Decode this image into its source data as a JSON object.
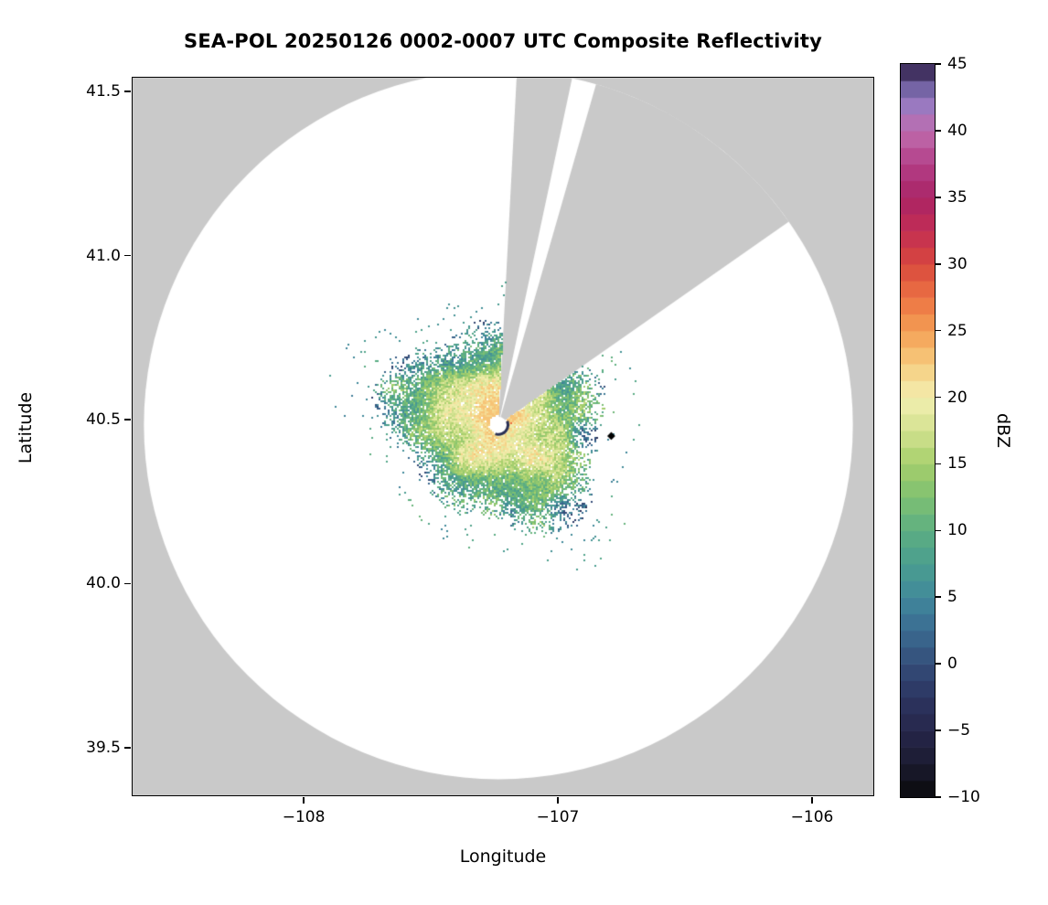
{
  "chart_data": {
    "type": "heatmap",
    "title": "SEA-POL 20250126 0002-0007 UTC Composite Reflectivity",
    "xlabel": "Longitude",
    "ylabel": "Latitude",
    "units": "dBZ",
    "grid": false,
    "xlim": [
      -108.673,
      -105.759
    ],
    "ylim": [
      39.355,
      41.542
    ],
    "x_ticks": [
      {
        "value": -108,
        "label": "−108"
      },
      {
        "value": -107,
        "label": "−107"
      },
      {
        "value": -106,
        "label": "−106"
      }
    ],
    "y_ticks": [
      {
        "value": 39.5,
        "label": "39.5"
      },
      {
        "value": 40.0,
        "label": "40.0"
      },
      {
        "value": 40.5,
        "label": "40.5"
      },
      {
        "value": 41.0,
        "label": "41.0"
      },
      {
        "value": 41.5,
        "label": "41.5"
      }
    ],
    "background_outside_coverage": "#c9c9c9",
    "coverage_fill": "#ffffff",
    "radar": {
      "center_lon": -107.234,
      "center_lat": 40.484,
      "range_radius_deg_lat": 1.08,
      "site_hole_radius_deg_lat": 0.025
    },
    "blocked_azimuth_sectors_deg_from_north": [
      [
        3,
        12
      ],
      [
        16,
        55
      ]
    ],
    "echo": {
      "centered_on_radar": true,
      "mean_radius_deg_lat": 0.31,
      "radius_variation_deg_lat": 0.105,
      "core_dbz": 22,
      "edge_dbz": 4,
      "texture": "speckled radar gates; pale-yellow core ~18-22 dBZ, green 10-16 dBZ midband, teal-blue 0-8 dBZ ragged fringe with isolated outer specks, rare red-orange pixels ~28-30 dBZ"
    },
    "marker": {
      "lon": -106.79,
      "lat": 40.45,
      "shape": "diamond",
      "color": "#000000"
    },
    "colorbar": {
      "label": "dBZ",
      "min": -10,
      "max": 45,
      "ticks": [
        {
          "value": -10,
          "label": "−10"
        },
        {
          "value": -5,
          "label": "−5"
        },
        {
          "value": 0,
          "label": "0"
        },
        {
          "value": 5,
          "label": "5"
        },
        {
          "value": 10,
          "label": "10"
        },
        {
          "value": 15,
          "label": "15"
        },
        {
          "value": 20,
          "label": "20"
        },
        {
          "value": 25,
          "label": "25"
        },
        {
          "value": 30,
          "label": "30"
        },
        {
          "value": 35,
          "label": "35"
        },
        {
          "value": 40,
          "label": "40"
        },
        {
          "value": 45,
          "label": "45"
        }
      ],
      "colormap_stops": [
        {
          "dbz": -10,
          "color": "#0a0a0a"
        },
        {
          "dbz": -7.5,
          "color": "#1b1b30"
        },
        {
          "dbz": -5,
          "color": "#26264a"
        },
        {
          "dbz": -2.5,
          "color": "#2c3561"
        },
        {
          "dbz": 0,
          "color": "#344d79"
        },
        {
          "dbz": 2.5,
          "color": "#3a6b91"
        },
        {
          "dbz": 5,
          "color": "#40889b"
        },
        {
          "dbz": 7.5,
          "color": "#4b9e8f"
        },
        {
          "dbz": 10,
          "color": "#5cae82"
        },
        {
          "dbz": 12.5,
          "color": "#7ec072"
        },
        {
          "dbz": 15,
          "color": "#a6cf6b"
        },
        {
          "dbz": 17.5,
          "color": "#d3e290"
        },
        {
          "dbz": 20,
          "color": "#f3efb1"
        },
        {
          "dbz": 22.5,
          "color": "#f6cc7e"
        },
        {
          "dbz": 25,
          "color": "#f49f54"
        },
        {
          "dbz": 27.5,
          "color": "#ec7243"
        },
        {
          "dbz": 30,
          "color": "#d8483d"
        },
        {
          "dbz": 32.5,
          "color": "#c32d53"
        },
        {
          "dbz": 35,
          "color": "#aa2465"
        },
        {
          "dbz": 37.5,
          "color": "#b33f87"
        },
        {
          "dbz": 40,
          "color": "#bf6cae"
        },
        {
          "dbz": 42.5,
          "color": "#8e7dc6"
        },
        {
          "dbz": 45,
          "color": "#2a1a42"
        }
      ]
    }
  }
}
